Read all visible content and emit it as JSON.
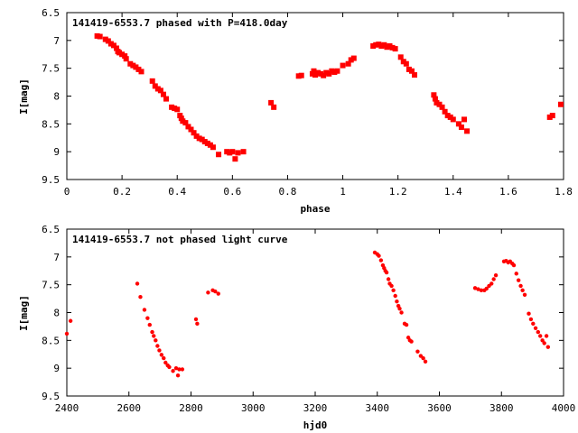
{
  "chart_data": [
    {
      "type": "scatter",
      "title": "141419-6553.7 phased with P=418.0day",
      "xlabel": "phase",
      "ylabel": "I[mag]",
      "xlim": [
        0,
        1.8
      ],
      "ylim": [
        9.5,
        6.5
      ],
      "y_inverted": true,
      "xticks": [
        "0",
        "0.2",
        "0.4",
        "0.6",
        "0.8",
        "1",
        "1.2",
        "1.4",
        "1.6",
        "1.8"
      ],
      "yticks": [
        "6.5",
        "7",
        "7.5",
        "8",
        "8.5",
        "9",
        "9.5"
      ],
      "grid": false,
      "marker_color": "#ff0000",
      "points": [
        [
          0.11,
          6.92
        ],
        [
          0.12,
          6.93
        ],
        [
          0.14,
          6.98
        ],
        [
          0.15,
          7.01
        ],
        [
          0.16,
          7.06
        ],
        [
          0.17,
          7.09
        ],
        [
          0.18,
          7.14
        ],
        [
          0.185,
          7.2
        ],
        [
          0.19,
          7.22
        ],
        [
          0.2,
          7.25
        ],
        [
          0.21,
          7.28
        ],
        [
          0.215,
          7.33
        ],
        [
          0.23,
          7.42
        ],
        [
          0.24,
          7.45
        ],
        [
          0.25,
          7.48
        ],
        [
          0.26,
          7.52
        ],
        [
          0.27,
          7.56
        ],
        [
          0.31,
          7.73
        ],
        [
          0.32,
          7.82
        ],
        [
          0.33,
          7.87
        ],
        [
          0.34,
          7.9
        ],
        [
          0.35,
          7.97
        ],
        [
          0.36,
          8.05
        ],
        [
          0.38,
          8.2
        ],
        [
          0.39,
          8.22
        ],
        [
          0.4,
          8.24
        ],
        [
          0.41,
          8.35
        ],
        [
          0.415,
          8.4
        ],
        [
          0.42,
          8.45
        ],
        [
          0.43,
          8.48
        ],
        [
          0.44,
          8.55
        ],
        [
          0.45,
          8.6
        ],
        [
          0.46,
          8.66
        ],
        [
          0.47,
          8.72
        ],
        [
          0.48,
          8.76
        ],
        [
          0.49,
          8.78
        ],
        [
          0.5,
          8.82
        ],
        [
          0.51,
          8.85
        ],
        [
          0.52,
          8.88
        ],
        [
          0.53,
          8.92
        ],
        [
          0.55,
          9.05
        ],
        [
          0.58,
          9.0
        ],
        [
          0.59,
          9.02
        ],
        [
          0.6,
          9.0
        ],
        [
          0.61,
          9.13
        ],
        [
          0.62,
          9.02
        ],
        [
          0.64,
          9.0
        ],
        [
          0.74,
          8.12
        ],
        [
          0.75,
          8.2
        ],
        [
          0.84,
          7.64
        ],
        [
          0.85,
          7.63
        ],
        [
          0.89,
          7.6
        ],
        [
          0.895,
          7.55
        ],
        [
          0.9,
          7.62
        ],
        [
          0.91,
          7.58
        ],
        [
          0.92,
          7.6
        ],
        [
          0.93,
          7.63
        ],
        [
          0.94,
          7.58
        ],
        [
          0.95,
          7.6
        ],
        [
          0.96,
          7.55
        ],
        [
          0.97,
          7.57
        ],
        [
          0.98,
          7.55
        ],
        [
          1.0,
          7.45
        ],
        [
          1.02,
          7.42
        ],
        [
          1.03,
          7.35
        ],
        [
          1.04,
          7.32
        ],
        [
          1.11,
          7.1
        ],
        [
          1.12,
          7.08
        ],
        [
          1.13,
          7.07
        ],
        [
          1.14,
          7.1
        ],
        [
          1.15,
          7.08
        ],
        [
          1.16,
          7.12
        ],
        [
          1.17,
          7.1
        ],
        [
          1.18,
          7.13
        ],
        [
          1.19,
          7.15
        ],
        [
          1.21,
          7.3
        ],
        [
          1.22,
          7.38
        ],
        [
          1.23,
          7.42
        ],
        [
          1.24,
          7.52
        ],
        [
          1.25,
          7.55
        ],
        [
          1.26,
          7.62
        ],
        [
          1.33,
          7.98
        ],
        [
          1.335,
          8.05
        ],
        [
          1.34,
          8.12
        ],
        [
          1.35,
          8.15
        ],
        [
          1.36,
          8.2
        ],
        [
          1.37,
          8.28
        ],
        [
          1.38,
          8.35
        ],
        [
          1.39,
          8.38
        ],
        [
          1.4,
          8.42
        ],
        [
          1.42,
          8.5
        ],
        [
          1.43,
          8.56
        ],
        [
          1.44,
          8.42
        ],
        [
          1.45,
          8.63
        ],
        [
          1.75,
          8.38
        ],
        [
          1.76,
          8.35
        ],
        [
          1.79,
          8.15
        ]
      ]
    },
    {
      "type": "scatter",
      "title": "141419-6553.7 not phased light curve",
      "xlabel": "hjd0",
      "ylabel": "I[mag]",
      "xlim": [
        2400,
        4000
      ],
      "ylim": [
        9.5,
        6.5
      ],
      "y_inverted": true,
      "xticks": [
        "2400",
        "2600",
        "2800",
        "3000",
        "3200",
        "3400",
        "3600",
        "3800",
        "4000"
      ],
      "yticks": [
        "6.5",
        "7",
        "7.5",
        "8",
        "8.5",
        "9",
        "9.5"
      ],
      "grid": false,
      "marker_color": "#ff0000",
      "points": [
        [
          2400,
          8.38
        ],
        [
          2412,
          8.15
        ],
        [
          2627,
          7.48
        ],
        [
          2637,
          7.72
        ],
        [
          2650,
          7.95
        ],
        [
          2660,
          8.1
        ],
        [
          2667,
          8.22
        ],
        [
          2675,
          8.35
        ],
        [
          2680,
          8.42
        ],
        [
          2686,
          8.5
        ],
        [
          2692,
          8.6
        ],
        [
          2698,
          8.68
        ],
        [
          2705,
          8.76
        ],
        [
          2712,
          8.82
        ],
        [
          2718,
          8.9
        ],
        [
          2725,
          8.95
        ],
        [
          2730,
          8.98
        ],
        [
          2742,
          9.05
        ],
        [
          2752,
          9.0
        ],
        [
          2758,
          9.13
        ],
        [
          2762,
          9.02
        ],
        [
          2772,
          9.02
        ],
        [
          2816,
          8.12
        ],
        [
          2820,
          8.2
        ],
        [
          2855,
          7.64
        ],
        [
          2870,
          7.6
        ],
        [
          2878,
          7.62
        ],
        [
          2888,
          7.66
        ],
        [
          3392,
          6.92
        ],
        [
          3400,
          6.95
        ],
        [
          3405,
          6.98
        ],
        [
          3412,
          7.06
        ],
        [
          3418,
          7.15
        ],
        [
          3422,
          7.2
        ],
        [
          3426,
          7.25
        ],
        [
          3430,
          7.28
        ],
        [
          3436,
          7.4
        ],
        [
          3440,
          7.48
        ],
        [
          3446,
          7.52
        ],
        [
          3452,
          7.6
        ],
        [
          3458,
          7.7
        ],
        [
          3463,
          7.8
        ],
        [
          3468,
          7.88
        ],
        [
          3472,
          7.93
        ],
        [
          3478,
          8.0
        ],
        [
          3488,
          8.2
        ],
        [
          3494,
          8.22
        ],
        [
          3500,
          8.45
        ],
        [
          3505,
          8.5
        ],
        [
          3510,
          8.52
        ],
        [
          3530,
          8.7
        ],
        [
          3540,
          8.78
        ],
        [
          3548,
          8.82
        ],
        [
          3555,
          8.88
        ],
        [
          3715,
          7.56
        ],
        [
          3725,
          7.58
        ],
        [
          3735,
          7.6
        ],
        [
          3745,
          7.6
        ],
        [
          3752,
          7.57
        ],
        [
          3760,
          7.52
        ],
        [
          3768,
          7.48
        ],
        [
          3775,
          7.4
        ],
        [
          3782,
          7.33
        ],
        [
          3808,
          7.08
        ],
        [
          3815,
          7.07
        ],
        [
          3822,
          7.1
        ],
        [
          3828,
          7.08
        ],
        [
          3835,
          7.12
        ],
        [
          3840,
          7.15
        ],
        [
          3848,
          7.3
        ],
        [
          3855,
          7.42
        ],
        [
          3862,
          7.52
        ],
        [
          3868,
          7.6
        ],
        [
          3875,
          7.68
        ],
        [
          3888,
          8.02
        ],
        [
          3895,
          8.12
        ],
        [
          3902,
          8.2
        ],
        [
          3910,
          8.28
        ],
        [
          3918,
          8.35
        ],
        [
          3925,
          8.42
        ],
        [
          3932,
          8.5
        ],
        [
          3938,
          8.55
        ],
        [
          3945,
          8.42
        ],
        [
          3950,
          8.62
        ]
      ]
    }
  ]
}
